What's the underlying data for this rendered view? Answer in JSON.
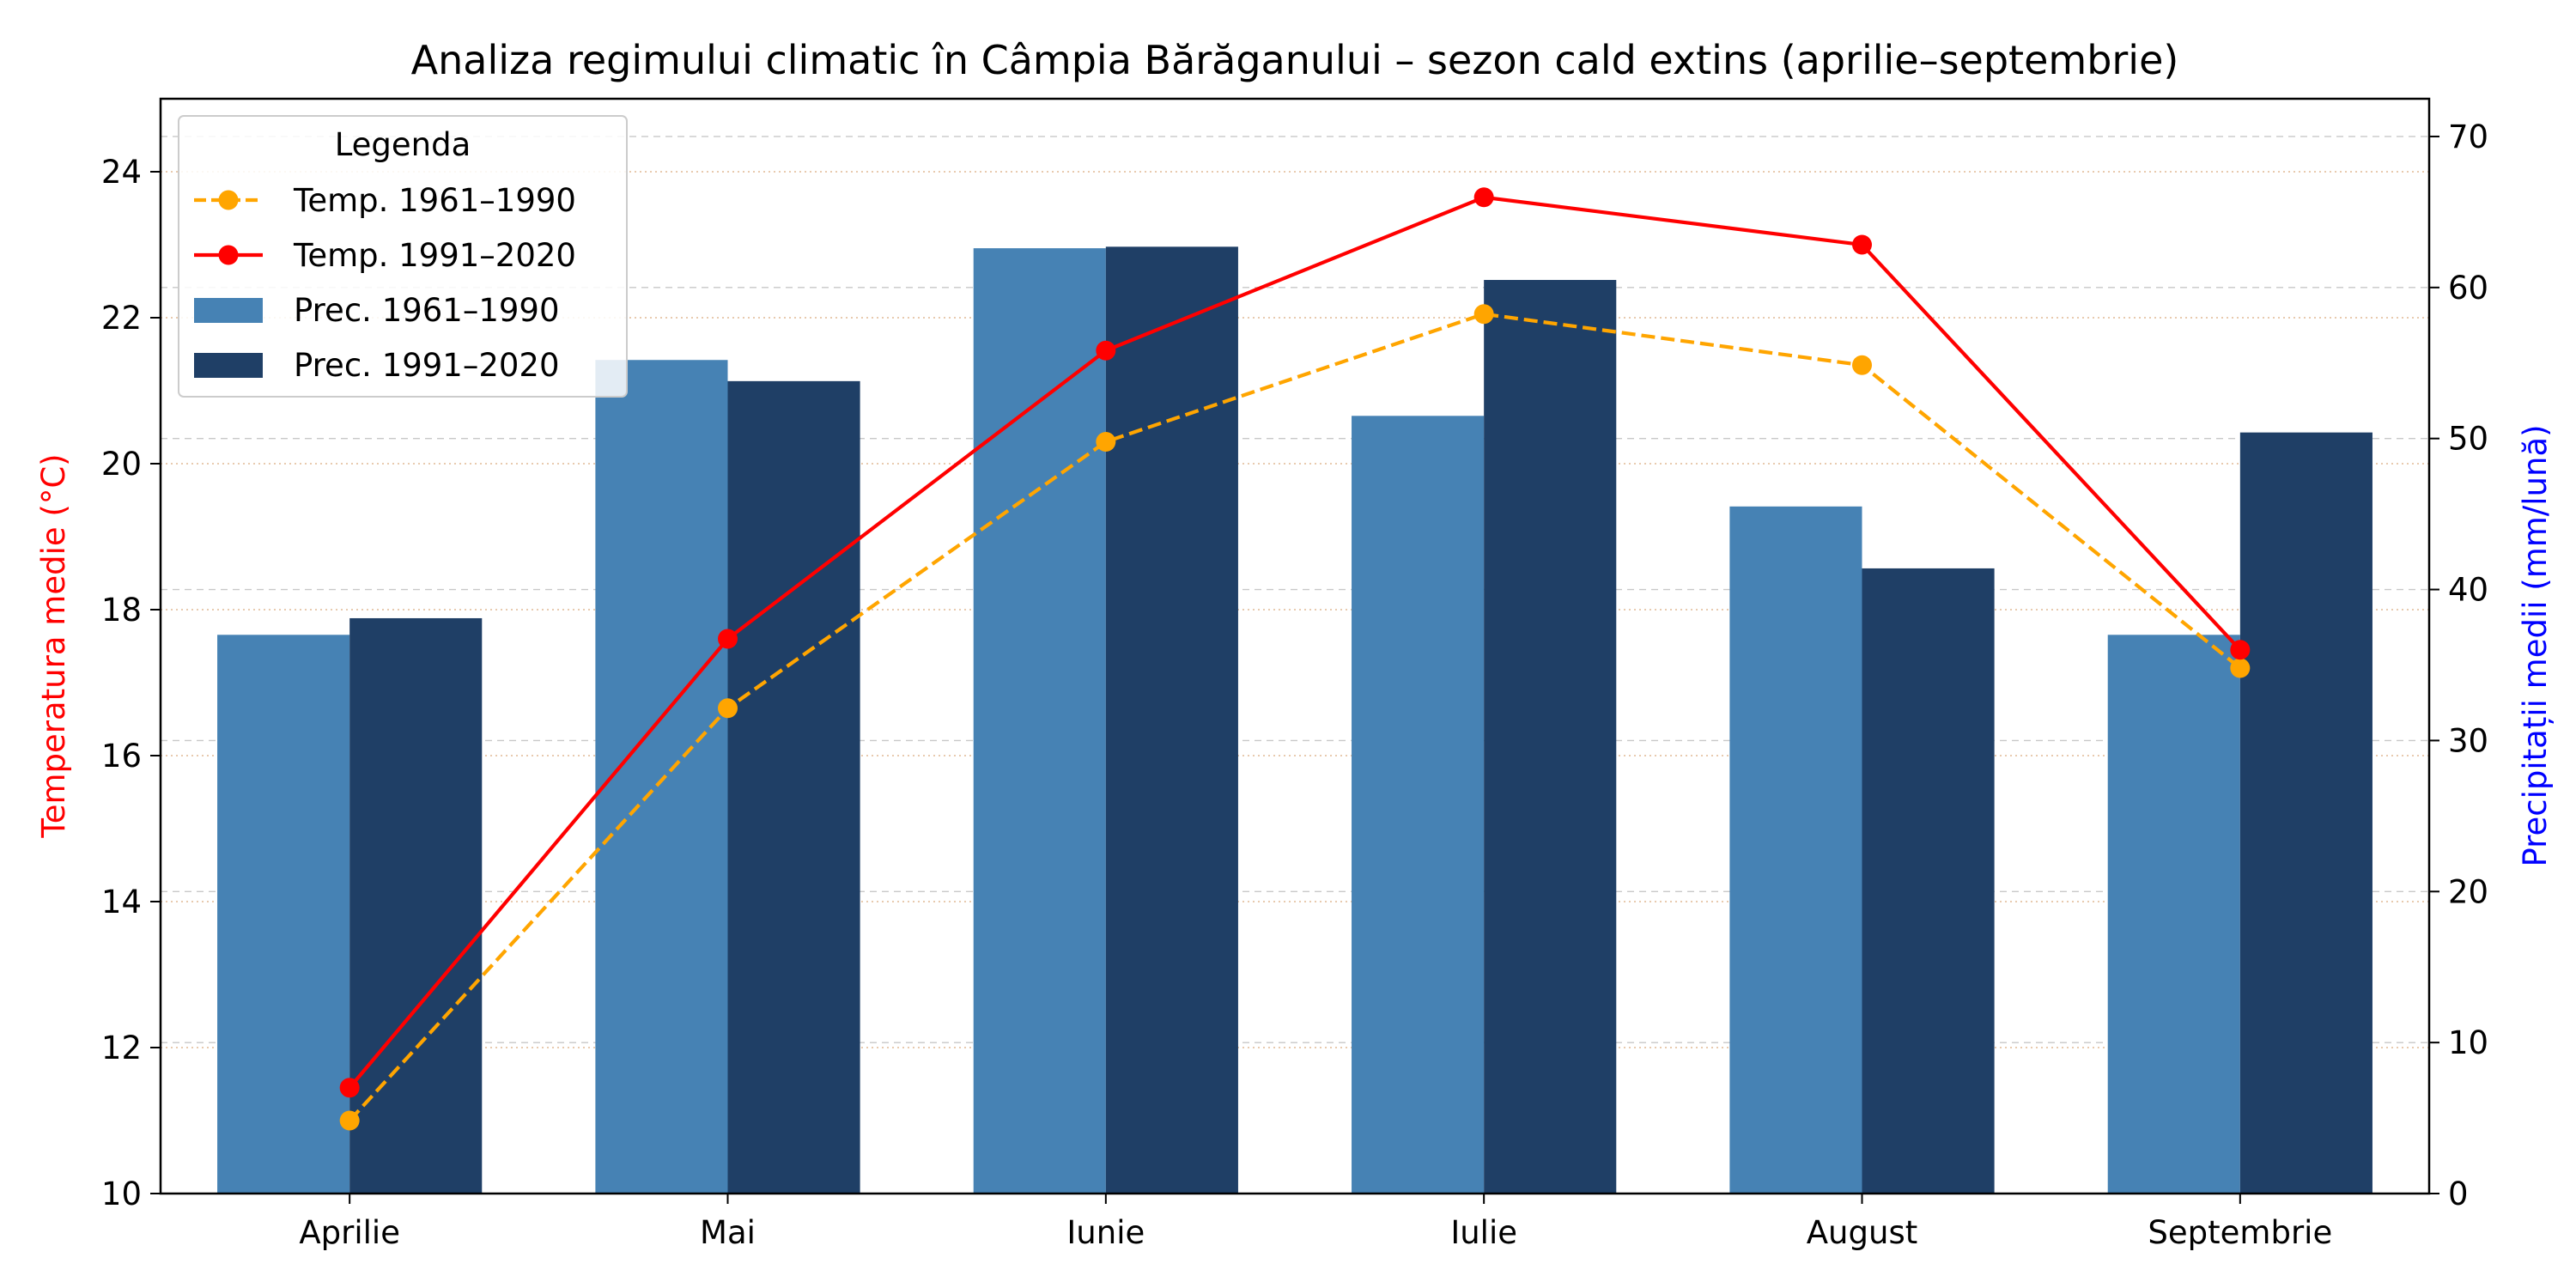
{
  "chart_data": {
    "type": "bar",
    "title": "Analiza regimului climatic în Câmpia Bărăganului – sezon cald extins (aprilie–septembrie)",
    "categories": [
      "Aprilie",
      "Mai",
      "Iunie",
      "Iulie",
      "August",
      "Septembrie"
    ],
    "left_axis": {
      "label": "Temperatura medie (°C)",
      "label_color": "#ff0000",
      "min": 10,
      "max": 25,
      "ticks": [
        10,
        12,
        14,
        16,
        18,
        20,
        22,
        24
      ]
    },
    "right_axis": {
      "label": "Precipitații medii (mm/lună)",
      "label_color": "#0000ff",
      "min": 0,
      "max": 72.5,
      "ticks": [
        0,
        10,
        20,
        30,
        40,
        50,
        60,
        70
      ]
    },
    "bar_series": [
      {
        "name": "Prec. 1961–1990",
        "values": [
          37,
          55.2,
          62.6,
          51.5,
          45.5,
          37
        ],
        "color": "#4682b4"
      },
      {
        "name": "Prec. 1991–2020",
        "values": [
          38.1,
          53.8,
          62.7,
          60.5,
          41.4,
          50.4
        ],
        "color": "#1f3f66"
      }
    ],
    "line_series": [
      {
        "name": "Temp. 1961–1990",
        "values": [
          11.0,
          16.65,
          20.3,
          22.05,
          21.35,
          17.2
        ],
        "color": "#ffa500",
        "dashed": true
      },
      {
        "name": "Temp. 1991–2020",
        "values": [
          11.45,
          17.6,
          21.55,
          23.65,
          23.0,
          17.45
        ],
        "color": "#ff0000",
        "dashed": false
      }
    ],
    "legend": {
      "title": "Legenda",
      "position": "top-left",
      "entries": [
        "Temp. 1961–1990",
        "Temp. 1991–2020",
        "Prec. 1961–1990",
        "Prec. 1991–2020"
      ]
    },
    "grid": true
  }
}
